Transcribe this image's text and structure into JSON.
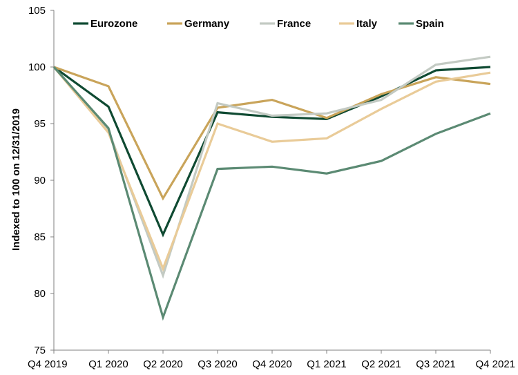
{
  "chart_data": {
    "type": "line",
    "title": "",
    "xlabel": "",
    "ylabel": "Indexed to 100 on 12/31/2019",
    "categories": [
      "Q4 2019",
      "Q1 2020",
      "Q2 2020",
      "Q3 2020",
      "Q4 2020",
      "Q1 2021",
      "Q2 2021",
      "Q3 2021",
      "Q4 2021"
    ],
    "ylim": [
      75,
      105
    ],
    "yticks": [
      "75",
      "80",
      "85",
      "90",
      "95",
      "100",
      "105"
    ],
    "grid": false,
    "legend_position": "top",
    "series": [
      {
        "name": "Eurozone",
        "color": "#0f4a32",
        "values": [
          100,
          96.5,
          85.2,
          96.0,
          95.6,
          95.4,
          97.4,
          99.7,
          100.0
        ]
      },
      {
        "name": "Germany",
        "color": "#c9a45a",
        "values": [
          100,
          98.3,
          88.4,
          96.4,
          97.1,
          95.5,
          97.6,
          99.1,
          98.5
        ]
      },
      {
        "name": "France",
        "color": "#c3cac3",
        "values": [
          100,
          94.4,
          81.6,
          96.8,
          95.7,
          95.9,
          97.1,
          100.2,
          100.9
        ]
      },
      {
        "name": "Italy",
        "color": "#e9cb98",
        "values": [
          100,
          94.2,
          82.2,
          95.0,
          93.4,
          93.7,
          96.3,
          98.7,
          99.5
        ]
      },
      {
        "name": "Spain",
        "color": "#5b8a73",
        "values": [
          100,
          94.6,
          77.9,
          91.0,
          91.2,
          90.6,
          91.7,
          94.1,
          95.9
        ]
      }
    ]
  }
}
